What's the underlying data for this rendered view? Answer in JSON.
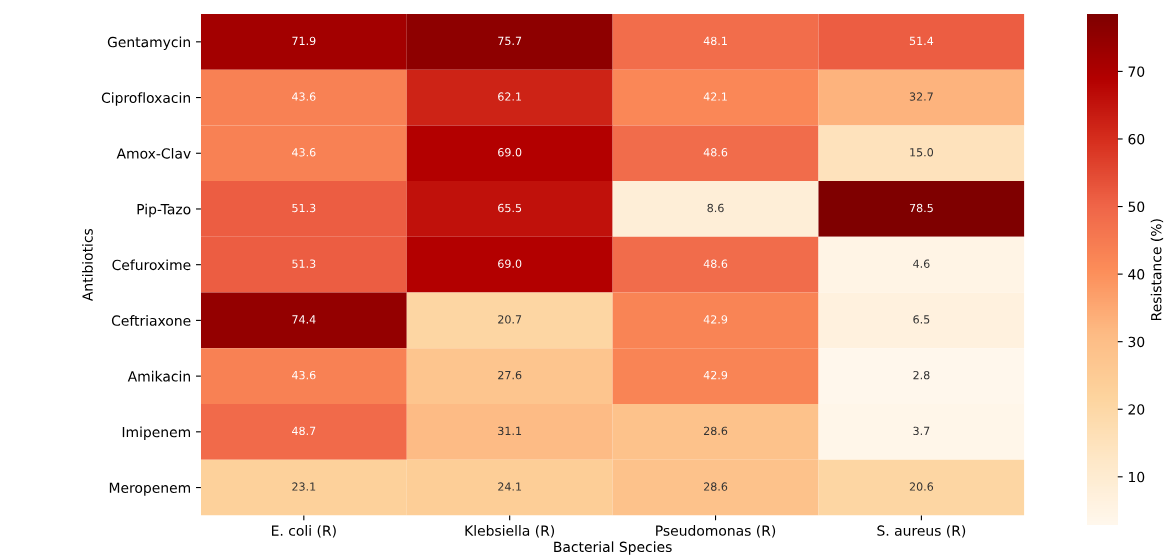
{
  "chart_data": {
    "type": "heatmap",
    "xlabel": "Bacterial Species",
    "ylabel": "Antibiotics",
    "clabel": "Resistance (%)",
    "categories": [
      "E. coli (R)",
      "Klebsiella (R)",
      "Pseudomonas (R)",
      "S. aureus (R)"
    ],
    "y_categories": [
      "Gentamycin",
      "Ciprofloxacin",
      "Amox-Clav",
      "Pip-Tazo",
      "Cefuroxime",
      "Ceftriaxone",
      "Amikacin",
      "Imipenem",
      "Meropenem"
    ],
    "cells": [
      [
        71.9,
        75.7,
        48.1,
        51.4
      ],
      [
        43.6,
        62.1,
        42.1,
        32.7
      ],
      [
        43.6,
        69.0,
        48.6,
        15.0
      ],
      [
        51.3,
        65.5,
        8.6,
        78.5
      ],
      [
        51.3,
        69.0,
        48.6,
        4.6
      ],
      [
        74.4,
        20.7,
        42.9,
        6.5
      ],
      [
        43.6,
        27.6,
        42.9,
        2.8
      ],
      [
        48.7,
        31.1,
        28.6,
        3.7
      ],
      [
        23.1,
        24.1,
        28.6,
        20.6
      ]
    ],
    "cell_labels": [
      [
        "71.9",
        "75.7",
        "48.1",
        "51.4"
      ],
      [
        "43.6",
        "62.1",
        "42.1",
        "32.7"
      ],
      [
        "43.6",
        "69.0",
        "48.6",
        "15.0"
      ],
      [
        "51.3",
        "65.5",
        "8.6",
        "78.5"
      ],
      [
        "51.3",
        "69.0",
        "48.6",
        "4.6"
      ],
      [
        "74.4",
        "20.7",
        "42.9",
        "6.5"
      ],
      [
        "43.6",
        "27.6",
        "42.9",
        "2.8"
      ],
      [
        "48.7",
        "31.1",
        "28.6",
        "3.7"
      ],
      [
        "23.1",
        "24.1",
        "28.6",
        "20.6"
      ]
    ],
    "clim": [
      2.8,
      78.5
    ],
    "cticks": [
      10,
      20,
      30,
      40,
      50,
      60,
      70
    ],
    "data_labels": true
  }
}
